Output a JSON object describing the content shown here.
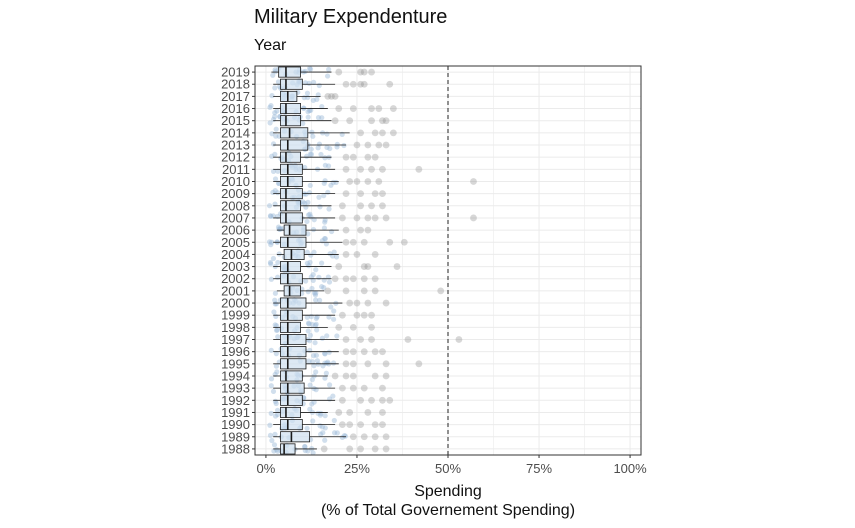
{
  "header": {
    "title": "Military Expendenture",
    "subtitle": "Year"
  },
  "chart_data": {
    "type": "box",
    "title": "Military Expendenture",
    "subtitle": "Year",
    "xlabel": [
      "Spending",
      "(% of Total Governement Spending)"
    ],
    "ylabel": "",
    "xlim": [
      -3,
      103
    ],
    "xticks": [
      0,
      25,
      50,
      75,
      100
    ],
    "xtick_labels": [
      "0%",
      "25%",
      "50%",
      "75%",
      "100%"
    ],
    "reference_line": {
      "x": 50,
      "style": "dashed"
    },
    "grid": true,
    "colors": {
      "box_fill": "#cfe0f0",
      "box_stroke": "#1a1a1a",
      "point": "#9ab8d6",
      "outlier": "#8c8c8c",
      "reference": "#222222"
    },
    "categories": [
      "2019",
      "2018",
      "2017",
      "2016",
      "2015",
      "2014",
      "2013",
      "2012",
      "2011",
      "2010",
      "2009",
      "2008",
      "2007",
      "2006",
      "2005",
      "2004",
      "2003",
      "2002",
      "2001",
      "2000",
      "1999",
      "1998",
      "1997",
      "1996",
      "1995",
      "1994",
      "1993",
      "1992",
      "1991",
      "1990",
      "1989",
      "1988"
    ],
    "boxes": [
      {
        "year": "2019",
        "q1": 3.5,
        "median": 5.5,
        "q3": 9.5,
        "max": 18,
        "outliers": [
          20,
          26,
          27,
          29
        ]
      },
      {
        "year": "2018",
        "q1": 4,
        "median": 5.5,
        "q3": 10,
        "max": 19,
        "outliers": [
          22,
          24,
          26,
          27,
          34
        ]
      },
      {
        "year": "2017",
        "q1": 4,
        "median": 6,
        "q3": 8.5,
        "max": 15,
        "outliers": [
          17,
          18,
          19
        ]
      },
      {
        "year": "2016",
        "q1": 4,
        "median": 5.5,
        "q3": 9.5,
        "max": 17,
        "outliers": [
          20,
          24,
          29,
          31,
          35
        ]
      },
      {
        "year": "2015",
        "q1": 4,
        "median": 5.5,
        "q3": 9.5,
        "max": 18,
        "outliers": [
          19,
          23,
          29,
          32,
          33
        ]
      },
      {
        "year": "2014",
        "q1": 4,
        "median": 6.5,
        "q3": 11.5,
        "max": 23,
        "outliers": [
          26,
          30,
          32,
          35
        ]
      },
      {
        "year": "2013",
        "q1": 4,
        "median": 6,
        "q3": 11.5,
        "max": 22,
        "outliers": [
          25,
          28,
          31,
          33
        ]
      },
      {
        "year": "2012",
        "q1": 4,
        "median": 5.5,
        "q3": 9.5,
        "max": 18,
        "outliers": [
          22,
          24,
          28,
          30
        ]
      },
      {
        "year": "2011",
        "q1": 4,
        "median": 6,
        "q3": 10,
        "max": 19,
        "outliers": [
          22,
          26,
          29,
          32,
          42
        ]
      },
      {
        "year": "2010",
        "q1": 4,
        "median": 6,
        "q3": 10,
        "max": 20,
        "outliers": [
          23,
          25,
          28,
          31,
          57
        ]
      },
      {
        "year": "2009",
        "q1": 4,
        "median": 5.5,
        "q3": 10,
        "max": 19,
        "outliers": [
          22,
          26,
          30,
          32
        ]
      },
      {
        "year": "2008",
        "q1": 4,
        "median": 5.5,
        "q3": 9.5,
        "max": 18,
        "outliers": [
          21,
          26,
          29,
          32
        ]
      },
      {
        "year": "2007",
        "q1": 4,
        "median": 5.5,
        "q3": 10,
        "max": 19,
        "outliers": [
          21,
          25,
          28,
          30,
          33,
          57
        ]
      },
      {
        "year": "2006",
        "q1": 5,
        "median": 6.5,
        "q3": 11,
        "max": 20,
        "outliers": [
          22,
          26,
          28
        ]
      },
      {
        "year": "2005",
        "q1": 4,
        "median": 6,
        "q3": 11,
        "max": 21,
        "outliers": [
          22,
          24,
          27,
          34,
          38
        ]
      },
      {
        "year": "2004",
        "q1": 5,
        "median": 7,
        "q3": 10.5,
        "max": 20,
        "outliers": [
          22,
          25,
          30
        ]
      },
      {
        "year": "2003",
        "q1": 4,
        "median": 6,
        "q3": 9.5,
        "max": 18,
        "outliers": [
          20,
          27,
          28,
          36
        ]
      },
      {
        "year": "2002",
        "q1": 4,
        "median": 6,
        "q3": 10,
        "max": 18,
        "outliers": [
          19,
          22,
          24,
          27,
          30
        ]
      },
      {
        "year": "2001",
        "q1": 5,
        "median": 6.5,
        "q3": 9.5,
        "max": 16,
        "outliers": [
          17,
          22,
          27,
          30,
          48
        ]
      },
      {
        "year": "2000",
        "q1": 4,
        "median": 6,
        "q3": 11,
        "max": 21,
        "outliers": [
          23,
          25,
          28,
          33
        ]
      },
      {
        "year": "1999",
        "q1": 4,
        "median": 6,
        "q3": 10,
        "max": 19,
        "outliers": [
          21,
          25,
          27,
          29
        ]
      },
      {
        "year": "1998",
        "q1": 4,
        "median": 6,
        "q3": 9.5,
        "max": 17,
        "outliers": [
          20,
          24,
          29
        ]
      },
      {
        "year": "1997",
        "q1": 4,
        "median": 6,
        "q3": 11,
        "max": 20,
        "outliers": [
          22,
          26,
          29,
          39,
          53
        ]
      },
      {
        "year": "1996",
        "q1": 4,
        "median": 6,
        "q3": 11,
        "max": 20,
        "outliers": [
          22,
          24,
          27,
          30,
          32
        ]
      },
      {
        "year": "1995",
        "q1": 4,
        "median": 6,
        "q3": 11,
        "max": 20,
        "outliers": [
          22,
          24,
          28,
          33,
          42
        ]
      },
      {
        "year": "1994",
        "q1": 4,
        "median": 5.5,
        "q3": 10,
        "max": 17,
        "outliers": [
          19,
          22,
          24,
          30,
          33
        ]
      },
      {
        "year": "1993",
        "q1": 4,
        "median": 6,
        "q3": 10.5,
        "max": 19,
        "outliers": [
          21,
          24,
          27,
          32
        ]
      },
      {
        "year": "1992",
        "q1": 4,
        "median": 6,
        "q3": 10,
        "max": 19,
        "outliers": [
          21,
          26,
          29,
          32,
          34
        ]
      },
      {
        "year": "1991",
        "q1": 4,
        "median": 5.5,
        "q3": 9.5,
        "max": 17,
        "outliers": [
          20,
          23,
          28,
          32
        ]
      },
      {
        "year": "1990",
        "q1": 4,
        "median": 6,
        "q3": 10,
        "max": 19,
        "outliers": [
          21,
          23,
          26,
          30,
          32
        ]
      },
      {
        "year": "1989",
        "q1": 4,
        "median": 7,
        "q3": 12,
        "max": 22,
        "outliers": [
          24,
          27,
          30,
          33
        ]
      },
      {
        "year": "1988",
        "q1": 4,
        "median": 5,
        "q3": 8,
        "max": 14,
        "outliers": [
          16,
          23,
          26,
          30,
          33
        ]
      }
    ]
  }
}
